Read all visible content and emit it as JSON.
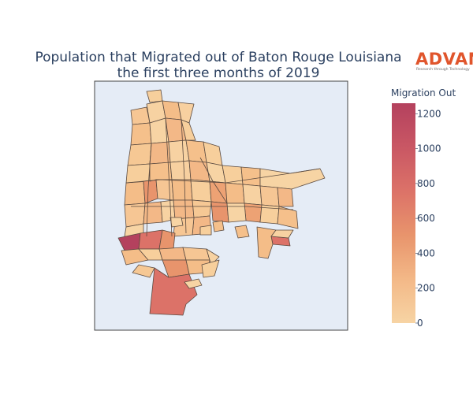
{
  "title": {
    "line1": "Population that Migrated out of Baton Rouge Louisiana",
    "line2": "the first three months of 2019"
  },
  "logo": {
    "word": "ADVAN",
    "tagline": "Research through Technology"
  },
  "colors": {
    "map_background": "#e5ecf6",
    "map_frame": "#444444",
    "text": "#2a3f5f",
    "scale_low": "#f7d4a4",
    "scale_mid": "#e8946c",
    "scale_high": "#b4415e",
    "logo": "#e0552c"
  },
  "map_data": {
    "type": "choropleth",
    "region": "Baton Rouge, Louisiana",
    "metric": "Migration Out",
    "color_scale": {
      "title": "Migration Out",
      "min": 0,
      "max": 1260,
      "ticks": [
        0,
        200,
        400,
        600,
        800,
        1000,
        1200
      ],
      "stops": [
        "#f7d4a4",
        "#f3b887",
        "#e8946c",
        "#dc7268",
        "#c95764",
        "#b4415e"
      ]
    },
    "notable_tracts": [
      {
        "id": "west-riverside-tract",
        "value": 1260
      },
      {
        "id": "southern-large-tract",
        "value": 780
      },
      {
        "id": "river-adjacent-tract",
        "value": 840
      },
      {
        "id": "east-tract",
        "value": 700
      }
    ]
  }
}
